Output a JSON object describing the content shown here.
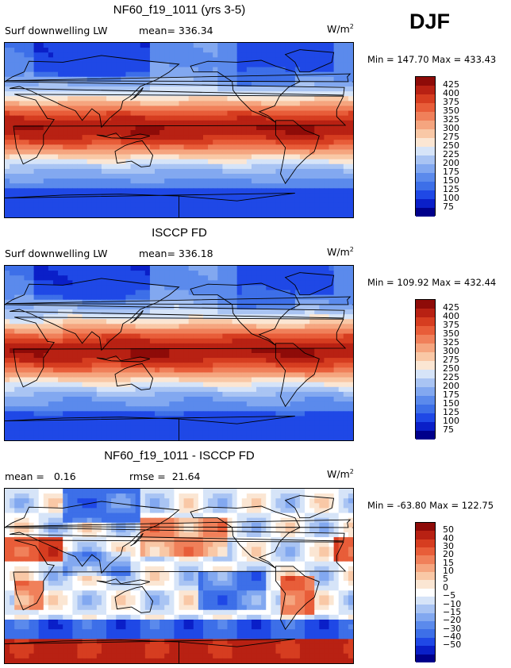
{
  "season": "DJF",
  "colors": {
    "abs": [
      "#00008b",
      "#0a1fc8",
      "#1f48e6",
      "#3d6fe8",
      "#5b8aec",
      "#82a8f0",
      "#a9c4f3",
      "#d6e4f8",
      "#fbe6d3",
      "#f9c8a6",
      "#f5a57f",
      "#f0805a",
      "#e85d39",
      "#d63d20",
      "#b82113",
      "#8e0b08"
    ],
    "diff": [
      "#00008b",
      "#0a1fc8",
      "#1f48e6",
      "#3d6fe8",
      "#5b8aec",
      "#82a8f0",
      "#a9c4f3",
      "#d6e4f8",
      "#ffffff",
      "#fbe6d3",
      "#f9c8a6",
      "#f5a57f",
      "#f0805a",
      "#e85d39",
      "#d63d20",
      "#b82113",
      "#8e0b08"
    ]
  },
  "panels": [
    {
      "title": "NF60_f19_1011 (yrs 3-5)",
      "left_text": "Surf downwelling LW",
      "mid_text": "mean= 336.34",
      "units_base": "W/m",
      "units_exp": "2",
      "minmax": "Min = 147.70 Max = 433.43",
      "chart_data": {
        "type": "heatmap",
        "title": "NF60_f19_1011 (yrs 3-5)",
        "variable": "Surf downwelling LW",
        "mean": 336.34,
        "min": 147.7,
        "max": 433.43,
        "units": "W/m2",
        "contour_levels": [
          75,
          100,
          125,
          150,
          175,
          200,
          225,
          250,
          275,
          300,
          325,
          350,
          375,
          400,
          425
        ]
      },
      "levels": [
        "425",
        "400",
        "375",
        "350",
        "325",
        "300",
        "275",
        "250",
        "225",
        "200",
        "175",
        "150",
        "125",
        "100",
        "75"
      ]
    },
    {
      "title": "ISCCP FD",
      "left_text": "Surf downwelling LW",
      "mid_text": "mean= 336.18",
      "units_base": "W/m",
      "units_exp": "2",
      "minmax": "Min = 109.92 Max = 432.44",
      "chart_data": {
        "type": "heatmap",
        "title": "ISCCP FD",
        "variable": "Surf downwelling LW",
        "mean": 336.18,
        "min": 109.92,
        "max": 432.44,
        "units": "W/m2",
        "contour_levels": [
          75,
          100,
          125,
          150,
          175,
          200,
          225,
          250,
          275,
          300,
          325,
          350,
          375,
          400,
          425
        ]
      },
      "levels": [
        "425",
        "400",
        "375",
        "350",
        "325",
        "300",
        "275",
        "250",
        "225",
        "200",
        "175",
        "150",
        "125",
        "100",
        "75"
      ]
    },
    {
      "title": "NF60_f19_1011 - ISCCP FD",
      "left_text": "mean =   0.16",
      "mid_text": "rmse =  21.64",
      "units_base": "W/m",
      "units_exp": "2",
      "minmax": "Min = -63.80 Max = 122.75",
      "chart_data": {
        "type": "heatmap",
        "title": "NF60_f19_1011 - ISCCP FD",
        "mean": 0.16,
        "rmse": 21.64,
        "min": -63.8,
        "max": 122.75,
        "units": "W/m2",
        "contour_levels": [
          -50,
          -40,
          -30,
          -20,
          -15,
          -10,
          -5,
          0,
          5,
          10,
          15,
          20,
          30,
          40,
          50
        ]
      },
      "levels": [
        "50",
        "40",
        "30",
        "20",
        "15",
        "10",
        "5",
        "0",
        "−5",
        "−10",
        "−15",
        "−20",
        "−30",
        "−40",
        "−50"
      ]
    }
  ]
}
